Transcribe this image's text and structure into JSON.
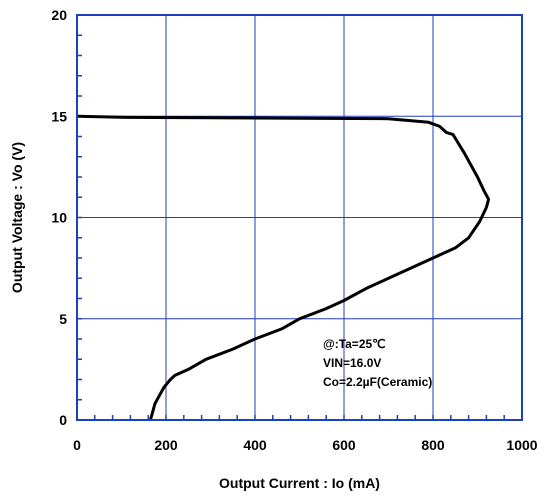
{
  "chart_data": {
    "type": "line",
    "title": "",
    "xlabel": "Output Current : Io (mA)",
    "ylabel": "Output Voltage : Vo (V)",
    "xlim": [
      0,
      1000
    ],
    "ylim": [
      0,
      20
    ],
    "x_ticks": [
      "0",
      "200",
      "400",
      "600",
      "800",
      "1000"
    ],
    "y_ticks": [
      "0",
      "5",
      "10",
      "15",
      "20"
    ],
    "grid": true,
    "colors": {
      "grid": "#1f3fbf",
      "frame": "#1f3fbf",
      "curve": "#000000"
    },
    "annotation": {
      "lines": [
        "@:Ta=25℃",
        "VIN=16.0V",
        "Co=2.2µF(Ceramic)"
      ]
    },
    "series": [
      {
        "x": [
          0,
          100,
          300,
          500,
          700,
          790,
          815,
          830,
          845,
          870,
          900,
          915,
          925,
          920,
          905,
          880,
          850,
          800,
          760,
          700,
          650,
          600,
          560,
          500,
          460,
          400,
          350,
          290,
          250,
          220,
          210,
          195,
          185,
          175,
          170,
          165
        ],
        "y": [
          15.0,
          14.95,
          14.93,
          14.9,
          14.88,
          14.7,
          14.5,
          14.2,
          14.1,
          13.2,
          12.0,
          11.3,
          10.9,
          10.5,
          9.8,
          9.0,
          8.5,
          8.0,
          7.6,
          7.0,
          6.5,
          5.9,
          5.5,
          5.0,
          4.5,
          4.0,
          3.5,
          3.0,
          2.5,
          2.2,
          2.0,
          1.6,
          1.2,
          0.8,
          0.4,
          0.0
        ]
      }
    ]
  }
}
